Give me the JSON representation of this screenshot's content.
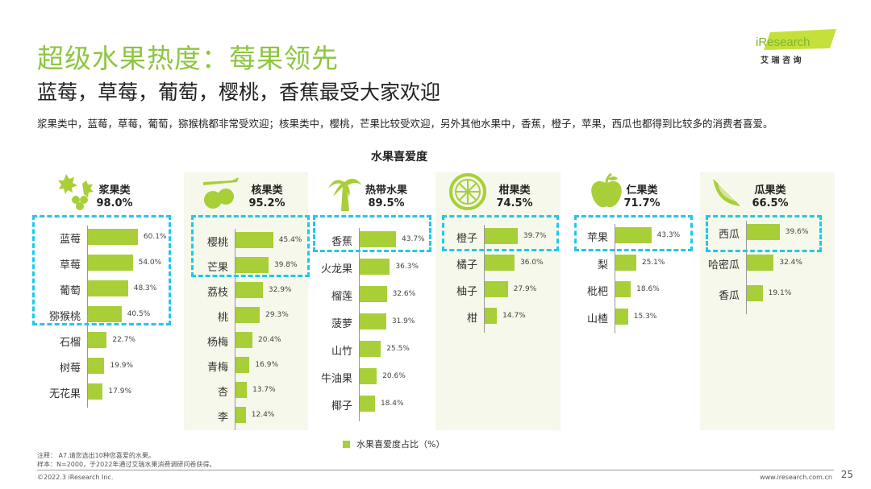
{
  "header": {
    "title": "超级水果热度：莓果领先",
    "subtitle": "蓝莓，草莓，葡萄，樱桃，香蕉最受大家欢迎",
    "description": "浆果类中，蓝莓，草莓，葡萄，猕猴桃都非常受欢迎；核果类中，樱桃，芒果比较受欢迎，另外其他水果中，香蕉，橙子，苹果，西瓜也都得到比较多的消费者喜爱。"
  },
  "logo": {
    "brand": "iResearch",
    "cn": "艾 瑞 咨 询"
  },
  "colors": {
    "accent": "#8dc63f",
    "bar": "#a8cf38",
    "highlight": "#1ec8f0"
  },
  "chart_data": {
    "type": "bar",
    "title": "水果喜爱度",
    "legend": "水果喜爱度占比（%）",
    "unit": "%",
    "groups": [
      {
        "name": "浆果类",
        "total": "98.0%",
        "icon": "holly-berry-icon",
        "categories": [
          "蓝莓",
          "草莓",
          "葡萄",
          "猕猴桃",
          "石榴",
          "树莓",
          "无花果"
        ],
        "values": [
          60.1,
          54.0,
          48.3,
          40.5,
          22.7,
          19.9,
          17.9
        ],
        "highlighted": 4
      },
      {
        "name": "核果类",
        "total": "95.2%",
        "icon": "cherry-icon",
        "categories": [
          "樱桃",
          "芒果",
          "荔枝",
          "桃",
          "杨梅",
          "青梅",
          "杏",
          "李"
        ],
        "values": [
          45.4,
          39.8,
          32.9,
          29.3,
          20.4,
          16.9,
          13.7,
          12.4
        ],
        "highlighted": 2
      },
      {
        "name": "热带水果",
        "total": "89.5%",
        "icon": "palm-tree-icon",
        "categories": [
          "香蕉",
          "火龙果",
          "榴莲",
          "菠萝",
          "山竹",
          "牛油果",
          "椰子"
        ],
        "values": [
          43.7,
          36.3,
          32.6,
          31.9,
          25.5,
          20.6,
          18.4
        ],
        "highlighted": 1
      },
      {
        "name": "柑果类",
        "total": "74.5%",
        "icon": "citrus-slice-icon",
        "categories": [
          "橙子",
          "橘子",
          "柚子",
          "柑"
        ],
        "values": [
          39.7,
          36.0,
          27.9,
          14.7
        ],
        "highlighted": 1
      },
      {
        "name": "仁果类",
        "total": "71.7%",
        "icon": "apple-icon",
        "categories": [
          "苹果",
          "梨",
          "枇杷",
          "山楂"
        ],
        "values": [
          43.3,
          25.1,
          18.6,
          15.3
        ],
        "highlighted": 1
      },
      {
        "name": "瓜果类",
        "total": "66.5%",
        "icon": "watermelon-icon",
        "categories": [
          "西瓜",
          "哈密瓜",
          "香瓜"
        ],
        "values": [
          39.6,
          32.4,
          19.1
        ],
        "highlighted": 1
      }
    ]
  },
  "notes": {
    "note1": "注释：  A7.请您选出10种您喜爱的水果。",
    "note2": "样本：N=2000，于2022年通过艾瑞水果消费调研问卷获得。"
  },
  "footer": {
    "copyright": "©2022.3 iResearch Inc.",
    "site": "www.iresearch.com.cn",
    "page": "25"
  }
}
